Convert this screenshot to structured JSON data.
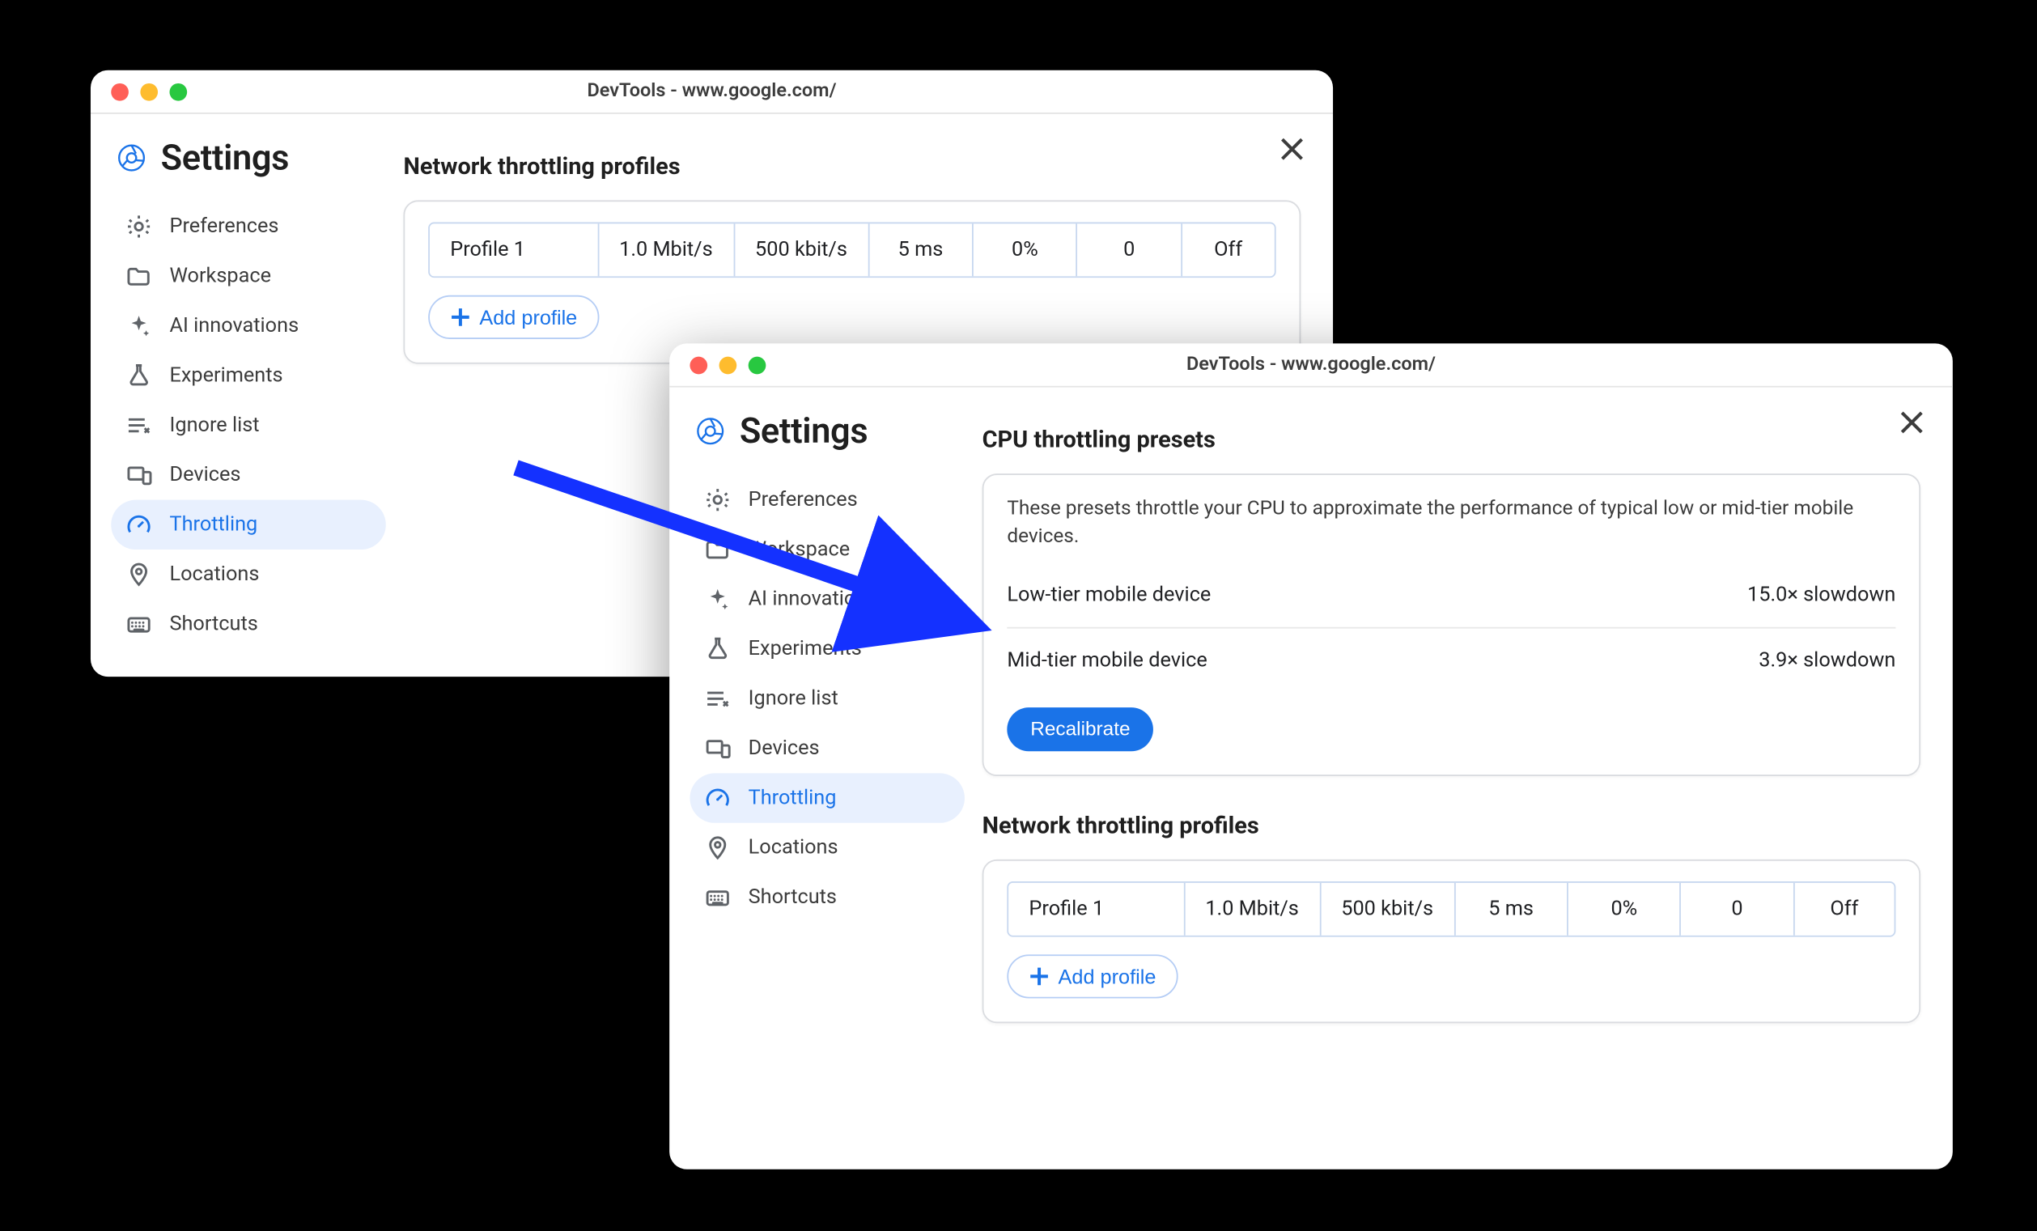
{
  "colors": {
    "background": "#000000",
    "window_bg": "#ffffff",
    "accent": "#1a73e8",
    "accent_bg": "#e8f0fe",
    "border": "#dadce0",
    "table_border": "#c7d7ef",
    "text": "#202124",
    "icon": "#5f6368",
    "traffic_close": "#ff5f57",
    "traffic_min": "#febc2e",
    "traffic_max": "#28c840",
    "arrow": "#1431ff"
  },
  "window_a": {
    "title": "DevTools - www.google.com/",
    "settings_label": "Settings",
    "nav": [
      {
        "icon": "gear",
        "label": "Preferences"
      },
      {
        "icon": "folder",
        "label": "Workspace"
      },
      {
        "icon": "sparkle",
        "label": "AI innovations"
      },
      {
        "icon": "flask",
        "label": "Experiments"
      },
      {
        "icon": "ignore",
        "label": "Ignore list"
      },
      {
        "icon": "devices",
        "label": "Devices"
      },
      {
        "icon": "gauge",
        "label": "Throttling",
        "active": true
      },
      {
        "icon": "pin",
        "label": "Locations"
      },
      {
        "icon": "keyboard",
        "label": "Shortcuts"
      }
    ],
    "network_section_title": "Network throttling profiles",
    "profile_row": {
      "name": "Profile 1",
      "down": "1.0 Mbit/s",
      "up": "500 kbit/s",
      "latency": "5 ms",
      "loss": "0%",
      "queue": "0",
      "state": "Off"
    },
    "add_profile_label": "Add profile"
  },
  "window_b": {
    "title": "DevTools - www.google.com/",
    "settings_label": "Settings",
    "nav": [
      {
        "icon": "gear",
        "label": "Preferences"
      },
      {
        "icon": "folder",
        "label": "Workspace"
      },
      {
        "icon": "sparkle",
        "label": "AI innovations"
      },
      {
        "icon": "flask",
        "label": "Experiments"
      },
      {
        "icon": "ignore",
        "label": "Ignore list"
      },
      {
        "icon": "devices",
        "label": "Devices"
      },
      {
        "icon": "gauge",
        "label": "Throttling",
        "active": true
      },
      {
        "icon": "pin",
        "label": "Locations"
      },
      {
        "icon": "keyboard",
        "label": "Shortcuts"
      }
    ],
    "cpu_section_title": "CPU throttling presets",
    "cpu_desc": "These presets throttle your CPU to approximate the performance of typical low or mid-tier mobile devices.",
    "presets": [
      {
        "label": "Low-tier mobile device",
        "value": "15.0× slowdown"
      },
      {
        "label": "Mid-tier mobile device",
        "value": "3.9× slowdown"
      }
    ],
    "recalibrate_label": "Recalibrate",
    "network_section_title": "Network throttling profiles",
    "profile_row": {
      "name": "Profile 1",
      "down": "1.0 Mbit/s",
      "up": "500 kbit/s",
      "latency": "5 ms",
      "loss": "0%",
      "queue": "0",
      "state": "Off"
    },
    "add_profile_label": "Add profile"
  }
}
